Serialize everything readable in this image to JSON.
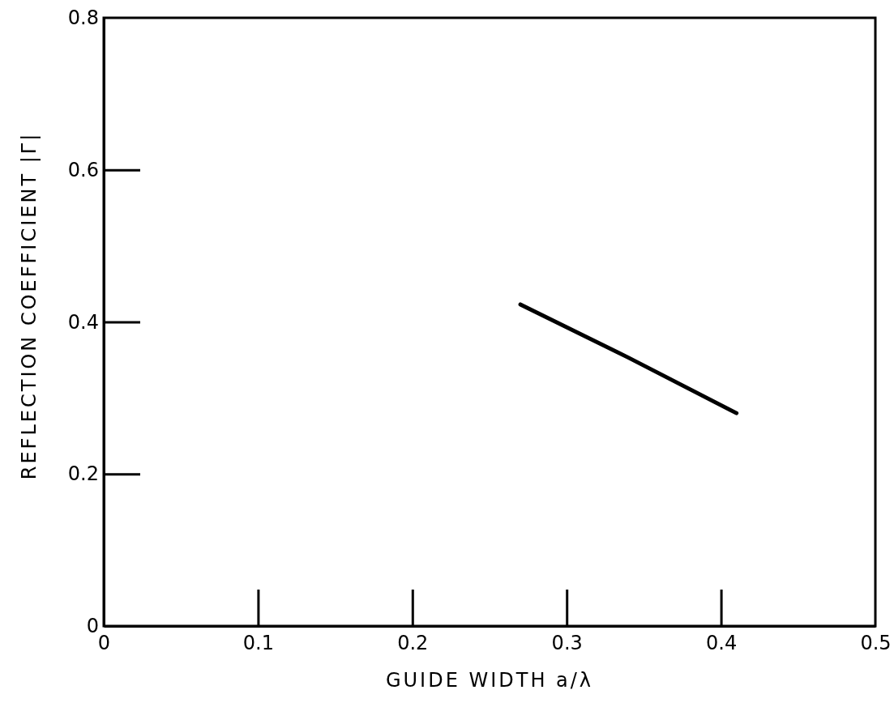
{
  "chart_data": {
    "type": "line",
    "xlabel": "GUIDE WIDTH a/λ",
    "ylabel": "REFLECTION COEFFICIENT |Γ|",
    "x": [
      0.27,
      0.34,
      0.41
    ],
    "series": [
      {
        "color": "#000000",
        "values": [
          0.423,
          0.353,
          0.28
        ]
      }
    ],
    "xlim": [
      0,
      0.5
    ],
    "xticks": [
      0,
      0.1,
      0.2,
      0.3,
      0.4,
      0.5
    ],
    "ylim": [
      0,
      0.8
    ],
    "yticks": [
      0,
      0.2,
      0.4,
      0.6,
      0.8
    ],
    "grid": false,
    "line_style": "solid"
  }
}
